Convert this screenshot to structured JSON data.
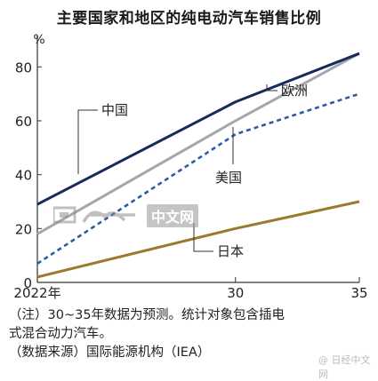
{
  "title": "主要国家和地区的纯电动汽车销售比例",
  "notes": [
    "（注）30~35年数据为预测。统计对象包含插电",
    "式混合动力汽车。",
    "（数据来源）国际能源机构（IEA）"
  ],
  "watermark": {
    "box_text": "中文网",
    "left_text": "日经",
    "corner_text": "@ 日经中文网"
  },
  "chart_data": {
    "type": "line",
    "title": "主要国家和地区的纯电动汽车销售比例",
    "ylabel": "%",
    "xlabel": "",
    "x": [
      2022,
      2030,
      2035
    ],
    "x_tick_labels": [
      "2022年",
      "30",
      "35"
    ],
    "y_ticks": [
      0,
      20,
      40,
      60,
      80
    ],
    "ylim": [
      0,
      90
    ],
    "grid": false,
    "series": [
      {
        "name": "中国",
        "values": [
          29,
          67,
          85
        ],
        "color": "#172a5c",
        "dash": "solid"
      },
      {
        "name": "欧洲",
        "values": [
          18,
          60,
          85
        ],
        "color": "#a3a6ab",
        "dash": "solid"
      },
      {
        "name": "美国",
        "values": [
          7,
          55,
          70
        ],
        "color": "#2c5ca6",
        "dash": "dashed"
      },
      {
        "name": "日本",
        "values": [
          2,
          20,
          30
        ],
        "color": "#9b7a2c",
        "dash": "solid"
      }
    ]
  }
}
